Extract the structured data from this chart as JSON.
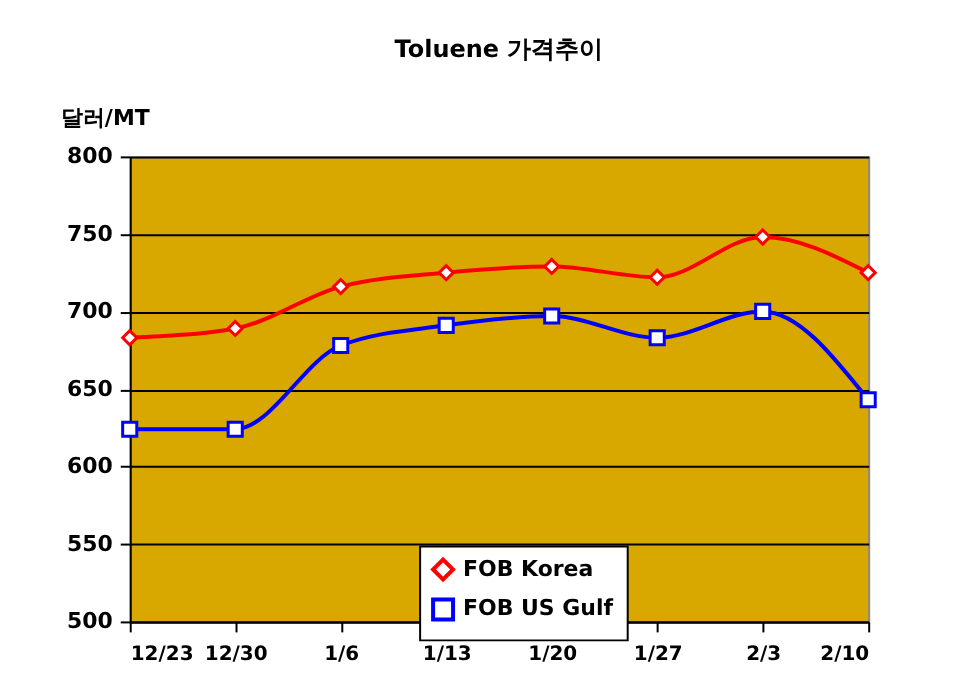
{
  "chart_data": {
    "type": "line",
    "title": "Toluene 가격추이",
    "ylabel": "달러/MT",
    "categories": [
      "12/23",
      "12/30",
      "1/6",
      "1/13",
      "1/20",
      "1/27",
      "2/3",
      "2/10"
    ],
    "series": [
      {
        "name": "FOB Korea",
        "color": "#ff0000",
        "marker": "diamond",
        "values": [
          683,
          689,
          716,
          725,
          729,
          722,
          748,
          725
        ]
      },
      {
        "name": "FOB US Gulf",
        "color": "#0000ff",
        "marker": "square",
        "values": [
          624,
          624,
          678,
          691,
          697,
          683,
          700,
          643
        ]
      }
    ],
    "ylim": [
      500,
      800
    ],
    "yticks": [
      500,
      550,
      600,
      650,
      700,
      750,
      800
    ],
    "grid": "y",
    "legend": "bottom",
    "line_style": "solid"
  }
}
